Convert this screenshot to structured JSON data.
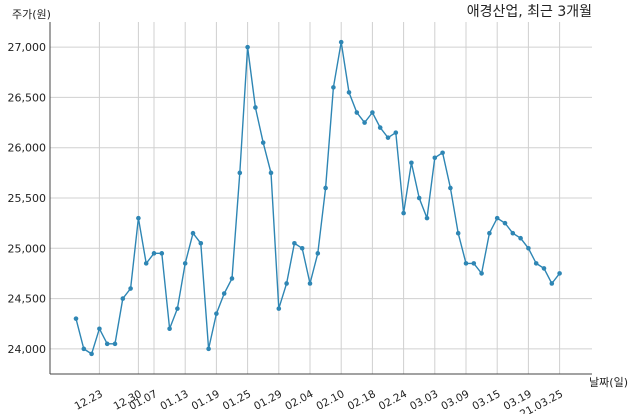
{
  "chart_data": {
    "type": "line",
    "title": "애경산업, 최근 3개월",
    "ylabel": "주가(원)",
    "xlabel": "날짜(일)",
    "ylim": [
      23750,
      27250
    ],
    "yticks": [
      24000,
      24500,
      25000,
      25500,
      26000,
      26500,
      27000
    ],
    "ytick_labels": [
      "24,000",
      "24,500",
      "25,000",
      "25,500",
      "26,000",
      "26,500",
      "27,000"
    ],
    "xtick_labels": [
      "12.23",
      "12.30",
      "01.07",
      "01.13",
      "01.19",
      "01.25",
      "01.29",
      "02.04",
      "02.10",
      "02.18",
      "02.24",
      "03.03",
      "03.09",
      "03.15",
      "03.19",
      "21.03.25"
    ],
    "xtick_index": [
      3,
      8,
      10,
      14,
      18,
      22,
      26,
      30,
      34,
      38,
      42,
      46,
      50,
      54,
      58,
      62
    ],
    "grid": true,
    "line_color": "#2e86b4",
    "values": [
      24300,
      24000,
      23950,
      24200,
      24050,
      24050,
      24500,
      24600,
      25300,
      24850,
      24950,
      24950,
      24200,
      24400,
      24850,
      25150,
      25050,
      24000,
      24350,
      24550,
      24700,
      25750,
      27000,
      26400,
      26050,
      25750,
      24400,
      24650,
      25050,
      25000,
      24650,
      24950,
      25600,
      26600,
      27050,
      26550,
      26350,
      26250,
      26350,
      26200,
      26100,
      26150,
      25350,
      25850,
      25500,
      25300,
      25900,
      25950,
      25600,
      25150,
      24850,
      24850,
      24750,
      25150,
      25300,
      25250,
      25150,
      25100,
      25000,
      24850,
      24800,
      24650,
      24750
    ]
  }
}
